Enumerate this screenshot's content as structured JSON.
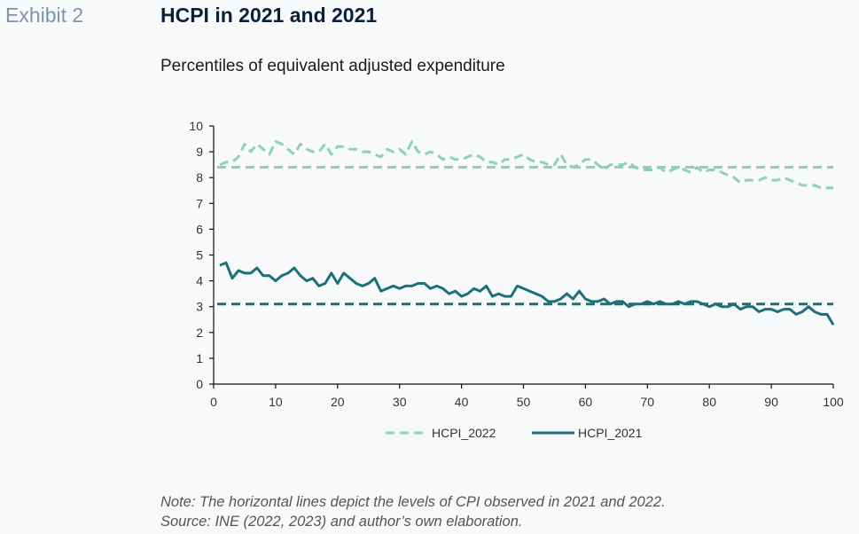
{
  "header": {
    "exhibit": "Exhibit 2",
    "title": "HCPI in 2021 and 2021",
    "subtitle": "Percentiles of equivalent adjusted expenditure"
  },
  "footer": {
    "note": "Note: The horizontal lines depict the levels of CPI observed in 2021 and 2022.",
    "source": "Source: INE (2022, 2023) and author’s own elaboration."
  },
  "colors": {
    "hcpi_2022": "#8fd1b1",
    "hcpi_2021": "#1d6f78",
    "axis": "#111111"
  },
  "chart_data": {
    "type": "line",
    "xlim": [
      0,
      100
    ],
    "ylim": [
      0,
      10
    ],
    "xticks": [
      0,
      10,
      20,
      30,
      40,
      50,
      60,
      70,
      80,
      90,
      100
    ],
    "yticks": [
      0,
      1,
      2,
      3,
      4,
      5,
      6,
      7,
      8,
      9,
      10
    ],
    "grid": false,
    "legend_position": "bottom",
    "reference_lines": [
      {
        "series": "HCPI_2022",
        "y": 8.4
      },
      {
        "series": "HCPI_2021",
        "y": 3.1
      }
    ],
    "series": [
      {
        "name": "HCPI_2022",
        "style": "dashed",
        "color": "#8fd1b1",
        "x": [
          1,
          2,
          3,
          4,
          5,
          6,
          7,
          8,
          9,
          10,
          11,
          12,
          13,
          14,
          15,
          16,
          17,
          18,
          19,
          20,
          21,
          22,
          23,
          24,
          25,
          26,
          27,
          28,
          29,
          30,
          31,
          32,
          33,
          34,
          35,
          36,
          37,
          38,
          39,
          40,
          41,
          42,
          43,
          44,
          45,
          46,
          47,
          48,
          49,
          50,
          51,
          52,
          53,
          54,
          55,
          56,
          57,
          58,
          59,
          60,
          61,
          62,
          63,
          64,
          65,
          66,
          67,
          68,
          69,
          70,
          71,
          72,
          73,
          74,
          75,
          76,
          77,
          78,
          79,
          80,
          81,
          82,
          83,
          84,
          85,
          86,
          87,
          88,
          89,
          90,
          91,
          92,
          93,
          94,
          95,
          96,
          97,
          98,
          99,
          100
        ],
        "values": [
          8.5,
          8.6,
          8.6,
          8.8,
          9.3,
          9.0,
          9.3,
          9.1,
          8.9,
          9.4,
          9.3,
          9.1,
          8.9,
          9.3,
          9.1,
          9.0,
          9.0,
          9.3,
          8.9,
          9.2,
          9.2,
          9.1,
          9.1,
          9.0,
          9.0,
          8.9,
          8.8,
          9.1,
          9.0,
          9.1,
          8.9,
          9.4,
          9.0,
          8.9,
          9.0,
          8.9,
          8.7,
          8.8,
          8.7,
          8.7,
          8.8,
          8.9,
          8.8,
          8.6,
          8.6,
          8.5,
          8.7,
          8.7,
          8.8,
          8.9,
          8.7,
          8.6,
          8.6,
          8.5,
          8.5,
          8.9,
          8.5,
          8.4,
          8.5,
          8.7,
          8.7,
          8.5,
          8.3,
          8.5,
          8.5,
          8.5,
          8.6,
          8.4,
          8.3,
          8.3,
          8.3,
          8.4,
          8.2,
          8.3,
          8.4,
          8.3,
          8.2,
          8.4,
          8.2,
          8.3,
          8.3,
          8.2,
          8.1,
          8.0,
          7.8,
          7.9,
          7.9,
          7.9,
          8.0,
          7.9,
          7.9,
          8.0,
          7.9,
          7.8,
          7.7,
          7.7,
          7.7,
          7.6,
          7.6,
          7.6
        ]
      },
      {
        "name": "HCPI_2021",
        "style": "solid",
        "color": "#1d6f78",
        "x": [
          1,
          2,
          3,
          4,
          5,
          6,
          7,
          8,
          9,
          10,
          11,
          12,
          13,
          14,
          15,
          16,
          17,
          18,
          19,
          20,
          21,
          22,
          23,
          24,
          25,
          26,
          27,
          28,
          29,
          30,
          31,
          32,
          33,
          34,
          35,
          36,
          37,
          38,
          39,
          40,
          41,
          42,
          43,
          44,
          45,
          46,
          47,
          48,
          49,
          50,
          51,
          52,
          53,
          54,
          55,
          56,
          57,
          58,
          59,
          60,
          61,
          62,
          63,
          64,
          65,
          66,
          67,
          68,
          69,
          70,
          71,
          72,
          73,
          74,
          75,
          76,
          77,
          78,
          79,
          80,
          81,
          82,
          83,
          84,
          85,
          86,
          87,
          88,
          89,
          90,
          91,
          92,
          93,
          94,
          95,
          96,
          97,
          98,
          99,
          100
        ],
        "values": [
          4.6,
          4.7,
          4.1,
          4.4,
          4.3,
          4.3,
          4.5,
          4.2,
          4.2,
          4.0,
          4.2,
          4.3,
          4.5,
          4.2,
          4.0,
          4.1,
          3.8,
          3.9,
          4.3,
          3.9,
          4.3,
          4.1,
          3.9,
          3.8,
          3.9,
          4.1,
          3.6,
          3.7,
          3.8,
          3.7,
          3.8,
          3.8,
          3.9,
          3.9,
          3.7,
          3.8,
          3.7,
          3.5,
          3.6,
          3.4,
          3.5,
          3.7,
          3.6,
          3.8,
          3.4,
          3.5,
          3.4,
          3.4,
          3.8,
          3.7,
          3.6,
          3.5,
          3.4,
          3.2,
          3.2,
          3.3,
          3.5,
          3.3,
          3.6,
          3.3,
          3.2,
          3.2,
          3.3,
          3.1,
          3.2,
          3.2,
          3.0,
          3.1,
          3.1,
          3.2,
          3.1,
          3.2,
          3.1,
          3.1,
          3.2,
          3.1,
          3.2,
          3.2,
          3.1,
          3.0,
          3.1,
          3.0,
          3.0,
          3.1,
          2.9,
          3.0,
          3.0,
          2.8,
          2.9,
          2.9,
          2.8,
          2.9,
          2.9,
          2.7,
          2.8,
          3.0,
          2.8,
          2.7,
          2.7,
          2.3
        ]
      }
    ]
  }
}
